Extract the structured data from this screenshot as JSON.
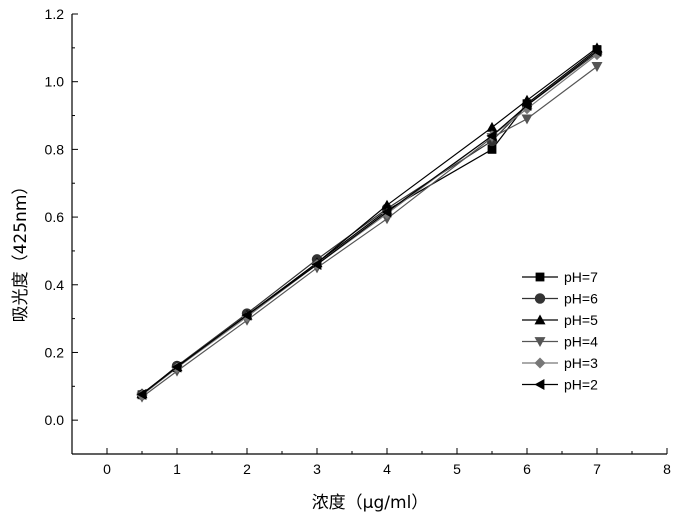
{
  "chart_data": {
    "type": "line",
    "xlabel": "浓度（μg/ml）",
    "ylabel": "吸光度（425nm）",
    "xlim": [
      -0.5,
      8
    ],
    "ylim": [
      -0.1,
      1.2
    ],
    "x_ticks": [
      0,
      1,
      2,
      3,
      4,
      5,
      6,
      7,
      8
    ],
    "y_ticks": [
      0.0,
      0.2,
      0.4,
      0.6,
      0.8,
      1.0,
      1.2
    ],
    "y_tick_labels": [
      "0.0",
      "0.2",
      "0.4",
      "0.6",
      "0.8",
      "1.0",
      "1.2"
    ],
    "x": [
      0.5,
      1,
      2,
      3,
      4,
      5.5,
      6,
      7
    ],
    "legend_position": "right",
    "series": [
      {
        "name": "pH=7",
        "marker": "square",
        "color": "#000000",
        "values": [
          0.075,
          0.155,
          0.31,
          0.465,
          0.62,
          0.8,
          0.935,
          1.095
        ]
      },
      {
        "name": "pH=6",
        "marker": "circle",
        "color": "#333333",
        "values": [
          0.075,
          0.16,
          0.315,
          0.475,
          0.625,
          0.825,
          0.93,
          1.085
        ]
      },
      {
        "name": "pH=5",
        "marker": "triangle-up",
        "color": "#000000",
        "values": [
          0.078,
          0.158,
          0.31,
          0.465,
          0.635,
          0.865,
          0.945,
          1.1
        ]
      },
      {
        "name": "pH=4",
        "marker": "triangle-down",
        "color": "#555555",
        "values": [
          0.068,
          0.145,
          0.295,
          0.45,
          0.595,
          0.835,
          0.89,
          1.045
        ]
      },
      {
        "name": "pH=3",
        "marker": "diamond",
        "color": "#777777",
        "values": [
          0.074,
          0.155,
          0.305,
          0.46,
          0.61,
          0.84,
          0.92,
          1.08
        ]
      },
      {
        "name": "pH=2",
        "marker": "triangle-left",
        "color": "#000000",
        "values": [
          0.076,
          0.157,
          0.31,
          0.46,
          0.615,
          0.84,
          0.93,
          1.09
        ]
      }
    ]
  }
}
